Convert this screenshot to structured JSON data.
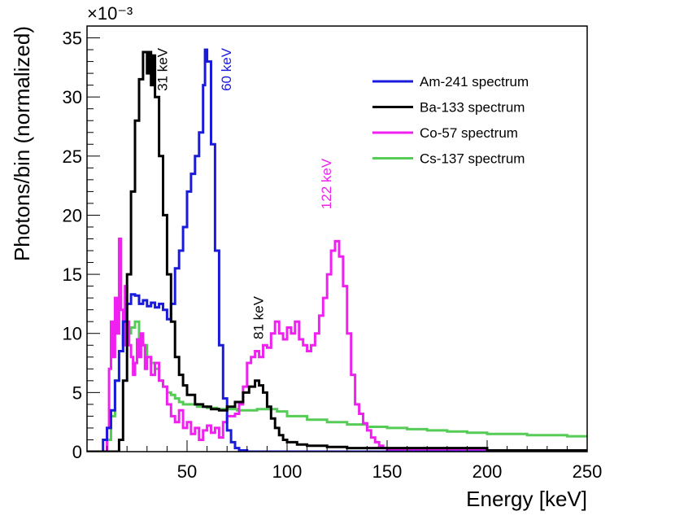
{
  "chart_data": {
    "type": "line",
    "title": "",
    "xlabel": "Energy [keV]",
    "ylabel": "Photons/bin (normalized)",
    "xlim": [
      0,
      250
    ],
    "ylim": [
      0,
      36
    ],
    "y_multiplier": "×10⁻³",
    "x_ticks": [
      50,
      100,
      150,
      200,
      250
    ],
    "y_ticks": [
      0,
      5,
      10,
      15,
      20,
      25,
      30,
      35
    ],
    "legend_position": "top-right",
    "series": [
      {
        "name": "Am-241 spectrum",
        "color": "#1a1adc",
        "x": [
          0,
          5,
          8,
          10,
          12,
          14,
          16,
          18,
          20,
          22,
          24,
          26,
          28,
          30,
          32,
          34,
          36,
          38,
          40,
          42,
          44,
          46,
          48,
          50,
          52,
          54,
          56,
          58,
          59,
          60,
          62,
          64,
          66,
          68,
          70,
          72,
          74,
          76,
          80,
          90,
          100,
          150,
          200,
          250
        ],
        "y": [
          0,
          0,
          1.0,
          2.0,
          3.5,
          6.0,
          8.5,
          11.0,
          12.5,
          13.3,
          13.2,
          12.5,
          12.8,
          12.3,
          12.6,
          12.2,
          12.5,
          12.0,
          11.2,
          12.5,
          15.5,
          17.0,
          19.0,
          22.0,
          23.5,
          25.0,
          27.0,
          31.0,
          34.0,
          33.0,
          26.0,
          17.0,
          9.0,
          4.5,
          1.8,
          0.8,
          0.3,
          0.1,
          0,
          0,
          0,
          0,
          0,
          0
        ]
      },
      {
        "name": "Ba-133 spectrum",
        "color": "#000000",
        "x": [
          0,
          10,
          12,
          14,
          16,
          18,
          20,
          22,
          24,
          26,
          28,
          30,
          31,
          32,
          33,
          34,
          36,
          38,
          40,
          42,
          44,
          46,
          48,
          50,
          54,
          58,
          62,
          66,
          70,
          74,
          78,
          81,
          84,
          86,
          88,
          90,
          92,
          94,
          96,
          98,
          100,
          105,
          110,
          120,
          130,
          150,
          200,
          250
        ],
        "y": [
          0,
          0,
          0,
          0,
          1.0,
          6.0,
          15.0,
          22.0,
          28.0,
          31.5,
          33.8,
          32.0,
          33.8,
          31.0,
          33.5,
          30.0,
          25.0,
          20.0,
          15.0,
          11.0,
          8.0,
          6.5,
          5.6,
          4.8,
          4.0,
          3.8,
          3.6,
          3.5,
          3.8,
          4.2,
          5.0,
          5.5,
          6.0,
          5.6,
          5.0,
          3.8,
          2.8,
          2.0,
          1.4,
          1.0,
          0.8,
          0.6,
          0.5,
          0.4,
          0.3,
          0.3,
          0.1,
          0.05
        ]
      },
      {
        "name": "Co-57 spectrum",
        "color": "#f020f0",
        "x": [
          0,
          8,
          10,
          11,
          12,
          13,
          14,
          15,
          16,
          17,
          18,
          19,
          20,
          21,
          22,
          23,
          24,
          25,
          26,
          27,
          28,
          29,
          30,
          32,
          34,
          36,
          38,
          40,
          42,
          44,
          46,
          48,
          50,
          52,
          54,
          56,
          58,
          60,
          62,
          64,
          66,
          68,
          70,
          72,
          74,
          76,
          78,
          80,
          82,
          84,
          86,
          88,
          90,
          92,
          94,
          96,
          98,
          100,
          102,
          104,
          106,
          108,
          110,
          112,
          114,
          116,
          118,
          120,
          122,
          124,
          126,
          128,
          130,
          132,
          134,
          136,
          138,
          140,
          142,
          144,
          146,
          148,
          150,
          200,
          250
        ],
        "y": [
          0,
          0,
          2.0,
          7.0,
          11.0,
          8.0,
          13.0,
          10.0,
          18.0,
          12.0,
          9.0,
          14.0,
          11.0,
          9.0,
          8.0,
          6.5,
          7.5,
          9.5,
          8.0,
          10.0,
          9.0,
          7.0,
          8.0,
          6.5,
          7.5,
          6.0,
          5.5,
          4.0,
          3.0,
          2.5,
          3.5,
          2.0,
          2.5,
          1.5,
          2.0,
          1.0,
          1.8,
          2.2,
          1.6,
          2.0,
          1.2,
          2.5,
          3.0,
          3.0,
          3.2,
          4.0,
          5.5,
          7.5,
          8.0,
          8.5,
          8.0,
          9.0,
          8.8,
          10.0,
          11.0,
          10.0,
          9.5,
          10.5,
          10.0,
          11.0,
          9.5,
          9.0,
          8.5,
          9.0,
          10.0,
          11.5,
          13.0,
          15.0,
          17.0,
          17.8,
          16.5,
          14.0,
          10.0,
          6.5,
          4.0,
          3.2,
          2.4,
          1.8,
          1.2,
          0.8,
          0.5,
          0.3,
          0.2,
          0.1,
          0.05
        ]
      },
      {
        "name": "Cs-137 spectrum",
        "color": "#55cc55",
        "x": [
          0,
          8,
          10,
          12,
          14,
          16,
          18,
          20,
          22,
          24,
          26,
          28,
          30,
          32,
          34,
          36,
          38,
          40,
          42,
          44,
          46,
          48,
          50,
          55,
          60,
          65,
          70,
          75,
          80,
          85,
          90,
          95,
          100,
          110,
          120,
          130,
          140,
          150,
          160,
          170,
          180,
          190,
          200,
          210,
          220,
          230,
          240,
          245,
          250
        ],
        "y": [
          0,
          0,
          1.0,
          3.0,
          6.0,
          8.5,
          10.0,
          10.0,
          10.5,
          11.0,
          9.5,
          9.0,
          8.0,
          7.5,
          7.0,
          6.0,
          5.5,
          5.0,
          4.8,
          4.5,
          4.2,
          4.0,
          4.0,
          3.8,
          3.7,
          3.6,
          3.6,
          3.5,
          3.5,
          3.6,
          3.6,
          3.4,
          3.0,
          2.7,
          2.5,
          2.3,
          2.1,
          2.0,
          1.9,
          1.8,
          1.7,
          1.6,
          1.5,
          1.5,
          1.4,
          1.4,
          1.3,
          1.3,
          1.2
        ]
      }
    ],
    "annotations": [
      {
        "text": "31 keV",
        "x": 40,
        "y": 30.5,
        "color": "#000000"
      },
      {
        "text": "60 keV",
        "x": 72,
        "y": 30.5,
        "color": "#1a1adc"
      },
      {
        "text": "81 keV",
        "x": 88,
        "y": 9.5,
        "color": "#000000"
      },
      {
        "text": "122 keV",
        "x": 122,
        "y": 20.5,
        "color": "#f020f0"
      }
    ]
  }
}
